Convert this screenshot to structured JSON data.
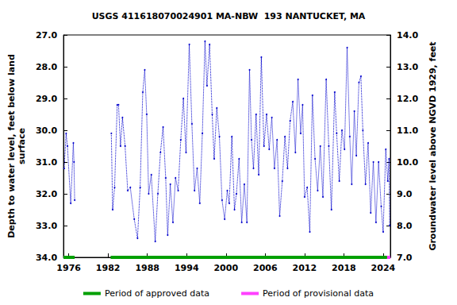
{
  "chart_data": {
    "type": "line",
    "title": "USGS 411618070024901 MA-NBW  193 NANTUCKET, MA",
    "ylabel": "Depth to water level, feet below land\nsurface",
    "y2label": "Groundwater level above NGVD 1929, feet",
    "xlim": [
      1975.2,
      2025.1
    ],
    "xticks": [
      1976,
      1982,
      1988,
      1994,
      2000,
      2006,
      2012,
      2018,
      2024
    ],
    "ylim": [
      27,
      34
    ],
    "yticks": [
      {
        "value": 27,
        "label": "27.0"
      },
      {
        "value": 28,
        "label": "28.0"
      },
      {
        "value": 29,
        "label": "29.0"
      },
      {
        "value": 30,
        "label": "30.0"
      },
      {
        "value": 31,
        "label": "31.0"
      },
      {
        "value": 32,
        "label": "32.0"
      },
      {
        "value": 33,
        "label": "33.0"
      },
      {
        "value": 34,
        "label": "34.0"
      }
    ],
    "y2lim": [
      7,
      14
    ],
    "y2ticks": [
      {
        "value": 7,
        "label": "7.0"
      },
      {
        "value": 8,
        "label": "8.0"
      },
      {
        "value": 9,
        "label": "9.0"
      },
      {
        "value": 10,
        "label": "10.0"
      },
      {
        "value": 11,
        "label": "11.0"
      },
      {
        "value": 12,
        "label": "12.0"
      },
      {
        "value": 13,
        "label": "13.0"
      },
      {
        "value": 14,
        "label": "14.0"
      }
    ],
    "grid": false,
    "legend": "bottom",
    "x": [
      1975.3,
      1975.6,
      1975.8,
      1976.3,
      1976.7,
      1976.8,
      1976.9,
      1979.5,
      1982.5,
      1982.7,
      1983.0,
      1983.4,
      1983.6,
      1983.9,
      1984.2,
      1984.6,
      1985.0,
      1985.4,
      1986.0,
      1986.5,
      1986.9,
      1987.3,
      1987.6,
      1987.9,
      1988.2,
      1988.6,
      1989.2,
      1989.6,
      1990.0,
      1990.4,
      1990.8,
      1991.1,
      1991.5,
      1991.9,
      1992.3,
      1992.7,
      1993.1,
      1993.5,
      1993.9,
      1994.4,
      1994.8,
      1995.2,
      1995.6,
      1996.0,
      1996.4,
      1996.8,
      1997.1,
      1997.5,
      1997.9,
      1998.2,
      1998.6,
      1999.0,
      1999.4,
      1999.8,
      2000.2,
      2000.5,
      2000.9,
      2001.3,
      2001.6,
      2002.0,
      2002.4,
      2002.8,
      2003.2,
      2003.6,
      2003.9,
      2004.2,
      2004.6,
      2005.0,
      2005.4,
      2005.8,
      2006.2,
      2006.6,
      2007.0,
      2007.4,
      2007.8,
      2008.2,
      2008.6,
      2009.0,
      2009.4,
      2009.8,
      2010.2,
      2010.6,
      2011.0,
      2011.4,
      2011.7,
      2012.0,
      2012.4,
      2012.8,
      2013.2,
      2013.6,
      2014.0,
      2014.4,
      2014.8,
      2015.3,
      2015.7,
      2016.1,
      2016.6,
      2016.9,
      2017.3,
      2017.7,
      2018.1,
      2018.5,
      2018.9,
      2019.2,
      2019.6,
      2019.9,
      2020.3,
      2020.6,
      2020.9,
      2021.3,
      2021.7,
      2022.1,
      2022.5,
      2022.9,
      2023.3,
      2023.7,
      2024.0,
      2024.4,
      2024.7,
      2024.9,
      2025.0
    ],
    "series": [
      {
        "name": "Depth to water level",
        "color": "#0000cc",
        "marker": "circle",
        "line_style": "dotted",
        "values": [
          31.2,
          30.1,
          30.5,
          32.3,
          30.4,
          31.0,
          32.2,
          null,
          30.1,
          32.5,
          31.8,
          29.2,
          29.2,
          30.5,
          29.6,
          30.5,
          31.9,
          31.8,
          32.8,
          33.4,
          31.8,
          28.8,
          28.1,
          29.5,
          32.0,
          31.4,
          33.5,
          32.0,
          30.7,
          29.9,
          31.5,
          33.3,
          31.7,
          32.9,
          31.5,
          31.9,
          30.3,
          29.0,
          30.7,
          27.3,
          29.8,
          31.9,
          31.2,
          32.3,
          30.1,
          27.2,
          28.6,
          27.3,
          29.5,
          30.9,
          29.3,
          30.2,
          32.2,
          32.8,
          31.9,
          32.3,
          30.2,
          32.5,
          32.0,
          30.9,
          32.9,
          31.7,
          32.9,
          28.1,
          30.3,
          31.2,
          29.5,
          31.4,
          27.7,
          30.5,
          29.5,
          30.6,
          29.6,
          31.2,
          30.3,
          32.7,
          31.6,
          30.2,
          31.2,
          29.7,
          29.1,
          30.7,
          28.4,
          30.1,
          29.2,
          32.1,
          31.8,
          33.2,
          28.9,
          30.9,
          31.9,
          30.5,
          32.1,
          28.4,
          30.5,
          32.5,
          28.8,
          30.1,
          31.6,
          30.0,
          30.6,
          27.4,
          30.2,
          31.7,
          29.4,
          30.8,
          28.5,
          28.3,
          30.0,
          31.7,
          30.4,
          32.6,
          31.0,
          32.9,
          31.0,
          32.4,
          33.2,
          30.6,
          31.6,
          30.9,
          33.0
        ]
      }
    ],
    "periods": [
      {
        "name": "Period of approved data",
        "color": "#00a000",
        "ranges": [
          [
            1975.2,
            1976.9
          ],
          [
            1982.4,
            2024.6
          ]
        ]
      },
      {
        "name": "Period of provisional data",
        "color": "#ff40ff",
        "ranges": [
          [
            2024.6,
            2025.1
          ]
        ]
      }
    ]
  }
}
